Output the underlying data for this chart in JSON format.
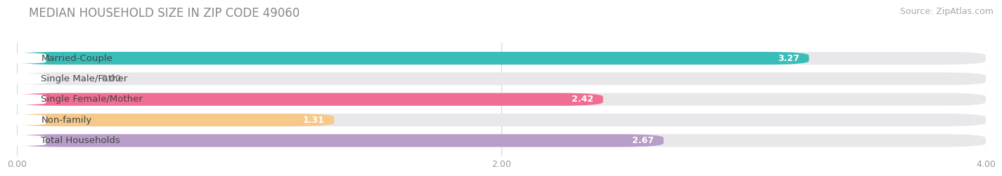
{
  "title": "MEDIAN HOUSEHOLD SIZE IN ZIP CODE 49060",
  "source": "Source: ZipAtlas.com",
  "categories": [
    "Married-Couple",
    "Single Male/Father",
    "Single Female/Mother",
    "Non-family",
    "Total Households"
  ],
  "values": [
    3.27,
    0.0,
    2.42,
    1.31,
    2.67
  ],
  "bar_colors": [
    "#39bdb8",
    "#a8bfdf",
    "#f06e93",
    "#f5c98a",
    "#b89dc8"
  ],
  "xlim": [
    0,
    4.0
  ],
  "xticks": [
    0.0,
    2.0,
    4.0
  ],
  "xtick_labels": [
    "0.00",
    "2.00",
    "4.00"
  ],
  "title_fontsize": 12,
  "source_fontsize": 9,
  "label_fontsize": 9.5,
  "value_fontsize": 9,
  "background_color": "#ffffff",
  "bar_bg_color": "#e8e8eb",
  "bar_height": 0.62,
  "bar_gap": 0.38
}
